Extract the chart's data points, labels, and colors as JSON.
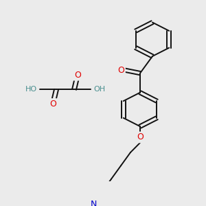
{
  "bg_color": "#ebebeb",
  "atom_colors": {
    "O": "#e00000",
    "N": "#0000cc",
    "C": "#111111",
    "H": "#4a8f8f"
  },
  "bond_color": "#111111",
  "bond_width": 1.4,
  "font_size_atom": 7.5
}
